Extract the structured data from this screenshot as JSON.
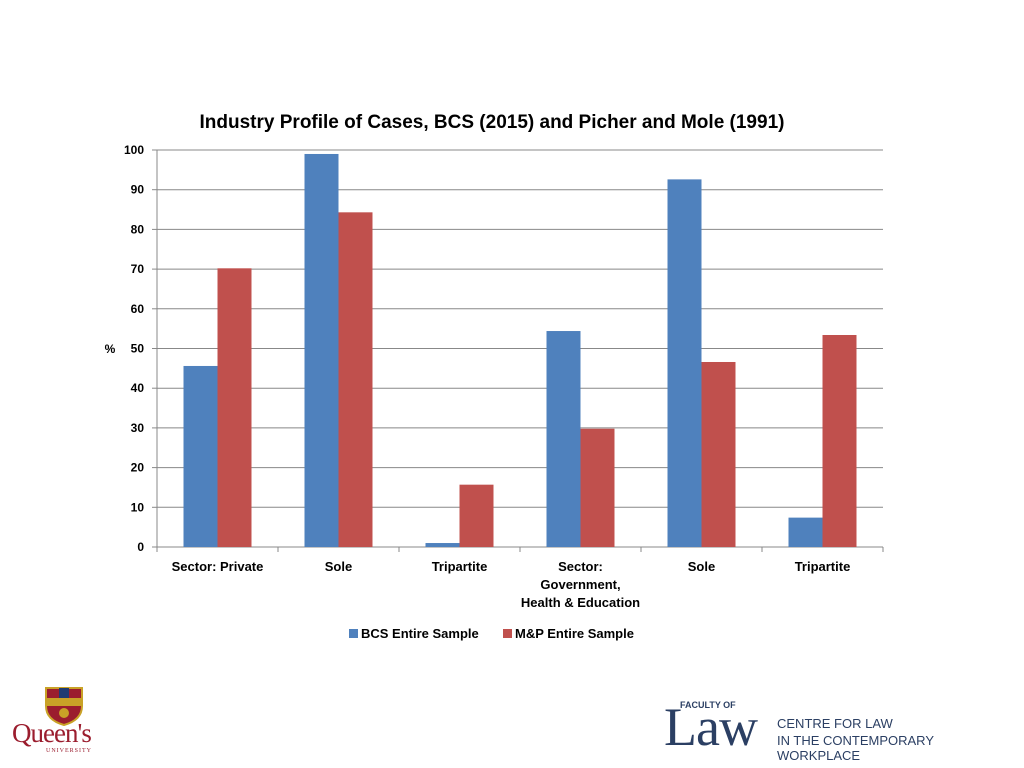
{
  "chart_data": {
    "type": "bar",
    "title": "Industry Profile of Cases, BCS (2015) and Picher and Mole (1991)",
    "ylabel": "%",
    "xlabel": "",
    "ylim": [
      0,
      100
    ],
    "yticks": [
      0,
      10,
      20,
      30,
      40,
      50,
      60,
      70,
      80,
      90,
      100
    ],
    "grid": true,
    "legend_position": "bottom",
    "categories": [
      [
        "Sector: Private"
      ],
      [
        "Sole"
      ],
      [
        "Tripartite"
      ],
      [
        "Sector:",
        "Government,",
        "Health & Education"
      ],
      [
        "Sole"
      ],
      [
        "Tripartite"
      ]
    ],
    "series": [
      {
        "name": "BCS Entire Sample",
        "color": "#4f81bd",
        "values": [
          45.6,
          99,
          1,
          54.4,
          92.6,
          7.4
        ]
      },
      {
        "name": "M&P Entire Sample",
        "color": "#c0504d",
        "values": [
          70.2,
          84.3,
          15.7,
          29.8,
          46.6,
          53.4
        ]
      }
    ]
  },
  "logos": {
    "queens_name": "Queen's",
    "queens_sub": "UNIVERSITY",
    "law_faculty": "FACULTY OF",
    "law_word": "Law",
    "law_centre_line1": "CENTRE FOR LAW",
    "law_centre_line2": "IN THE CONTEMPORARY WORKPLACE"
  },
  "colors": {
    "brand_red": "#9b1d2e",
    "brand_navy": "#2b3f63",
    "gridline": "#888888"
  }
}
